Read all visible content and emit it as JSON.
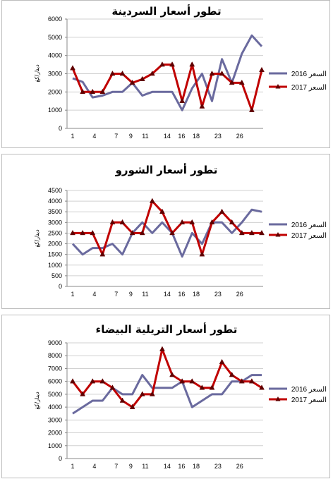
{
  "chart_data": [
    {
      "type": "line",
      "title": "تطور أسعار السردينة",
      "ylabel": "دينار/كغ",
      "ylim": [
        0,
        6000
      ],
      "yticks": [
        "0",
        "1000",
        "2000",
        "3000",
        "4000",
        "5000",
        "6000"
      ],
      "x_tick_labels": [
        "1",
        "4",
        "7",
        "9",
        "11",
        "14",
        "16",
        "18",
        "23",
        "26"
      ],
      "series": [
        {
          "name": "السعر 2016",
          "color": "#6a6a9e",
          "marker": "none",
          "values": [
            2750,
            2550,
            1700,
            1800,
            2000,
            2000,
            2500,
            1800,
            2000,
            2000,
            2000,
            1000,
            2200,
            3000,
            1500,
            3800,
            2500,
            4100,
            5100,
            4500
          ]
        },
        {
          "name": "السعر 2017",
          "color": "#c00000",
          "marker": "triangle",
          "values": [
            3300,
            2000,
            2000,
            2000,
            3000,
            3000,
            2500,
            2700,
            3000,
            3500,
            3500,
            1500,
            3500,
            1200,
            3000,
            3000,
            2500,
            2500,
            1000,
            3200
          ]
        }
      ]
    },
    {
      "type": "line",
      "title": "تطور أسعار الشورو",
      "ylabel": "دينار/كغ",
      "ylim": [
        0,
        4500
      ],
      "yticks": [
        "0",
        "500",
        "1000",
        "1500",
        "2000",
        "2500",
        "3000",
        "3500",
        "4000",
        "4500"
      ],
      "x_tick_labels": [
        "1",
        "4",
        "7",
        "9",
        "11",
        "14",
        "16",
        "18",
        "23",
        "26"
      ],
      "series": [
        {
          "name": "السعر 2016",
          "color": "#6a6a9e",
          "marker": "none",
          "values": [
            2000,
            1500,
            1800,
            1800,
            2000,
            1500,
            2500,
            3000,
            2500,
            3000,
            2500,
            1400,
            2500,
            2000,
            3000,
            3000,
            2500,
            3000,
            3600,
            3500
          ]
        },
        {
          "name": "السعر 2017",
          "color": "#c00000",
          "marker": "triangle",
          "values": [
            2500,
            2500,
            2500,
            1500,
            3000,
            3000,
            2500,
            2500,
            4000,
            3500,
            2500,
            3000,
            3000,
            1500,
            3000,
            3500,
            3000,
            2500,
            2500,
            2500
          ]
        }
      ]
    },
    {
      "type": "line",
      "title": "تطور أسعار التريلية البيضاء",
      "ylabel": "دينار/كغ",
      "ylim": [
        0,
        9000
      ],
      "yticks": [
        "0",
        "1000",
        "2000",
        "3000",
        "4000",
        "5000",
        "6000",
        "7000",
        "8000",
        "9000"
      ],
      "x_tick_labels": [
        "1",
        "4",
        "7",
        "9",
        "11",
        "14",
        "16",
        "18",
        "23",
        "26"
      ],
      "series": [
        {
          "name": "السعر 2016",
          "color": "#6a6a9e",
          "marker": "none",
          "values": [
            3500,
            4000,
            4500,
            4500,
            5500,
            5000,
            5000,
            6500,
            5500,
            5500,
            5500,
            6000,
            4000,
            4500,
            5000,
            5000,
            6000,
            6000,
            6500,
            6500
          ]
        },
        {
          "name": "السعر 2017",
          "color": "#c00000",
          "marker": "triangle",
          "values": [
            6000,
            5000,
            6000,
            6000,
            5500,
            4500,
            4000,
            5000,
            5000,
            8500,
            6500,
            6000,
            6000,
            5500,
            5500,
            7500,
            6500,
            6000,
            6000,
            5500
          ]
        }
      ]
    }
  ]
}
